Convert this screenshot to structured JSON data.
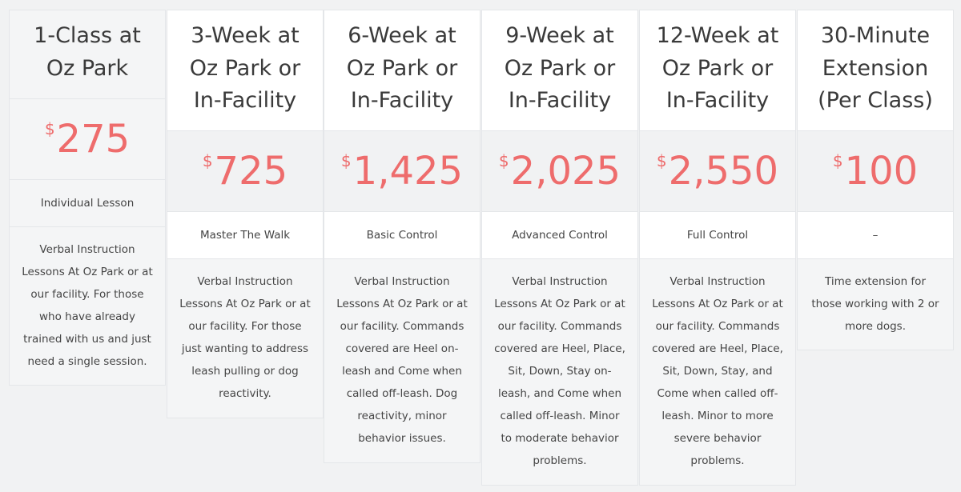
{
  "plans": [
    {
      "title": "1-Class at\nOz Park",
      "currency": "$",
      "price": "275",
      "subtitle": "Individual Lesson",
      "description": "Verbal Instruction Lessons At Oz Park or at our facility. For those who have already trained with us and just need a single session."
    },
    {
      "title": "3-Week at\nOz Park or\nIn-Facility",
      "currency": "$",
      "price": "725",
      "subtitle": "Master The Walk",
      "description": "Verbal Instruction Lessons At Oz Park or at our facility. For those just wanting to address leash pulling or dog reactivity."
    },
    {
      "title": "6-Week at\nOz Park or\nIn-Facility",
      "currency": "$",
      "price": "1,425",
      "subtitle": "Basic Control",
      "description": "Verbal Instruction Lessons At Oz Park or at our facility. Commands covered are Heel on-leash and Come when called off-leash. Dog reactivity, minor behavior issues."
    },
    {
      "title": "9-Week at\nOz Park or\nIn-Facility",
      "currency": "$",
      "price": "2,025",
      "subtitle": "Advanced Control",
      "description": "Verbal Instruction Lessons At Oz Park or at our facility. Commands covered are Heel, Place, Sit, Down, Stay on-leash, and Come when called off-leash. Minor to moderate behavior problems."
    },
    {
      "title": "12-Week at\nOz Park or\nIn-Facility",
      "currency": "$",
      "price": "2,550",
      "subtitle": "Full Control",
      "description": "Verbal Instruction Lessons At Oz Park or at our facility. Commands covered are Heel, Place, Sit, Down, Stay, and Come when called off-leash. Minor to more severe behavior problems."
    },
    {
      "title": "30-Minute\nExtension\n(Per Class)",
      "currency": "$",
      "price": "100",
      "subtitle": "–",
      "description": "Time extension for those working with 2 or more dogs."
    }
  ],
  "colors": {
    "price": "#ee6c6c",
    "background": "#f1f2f3",
    "header_background": "#ffffff",
    "border": "#e4e6e9"
  }
}
